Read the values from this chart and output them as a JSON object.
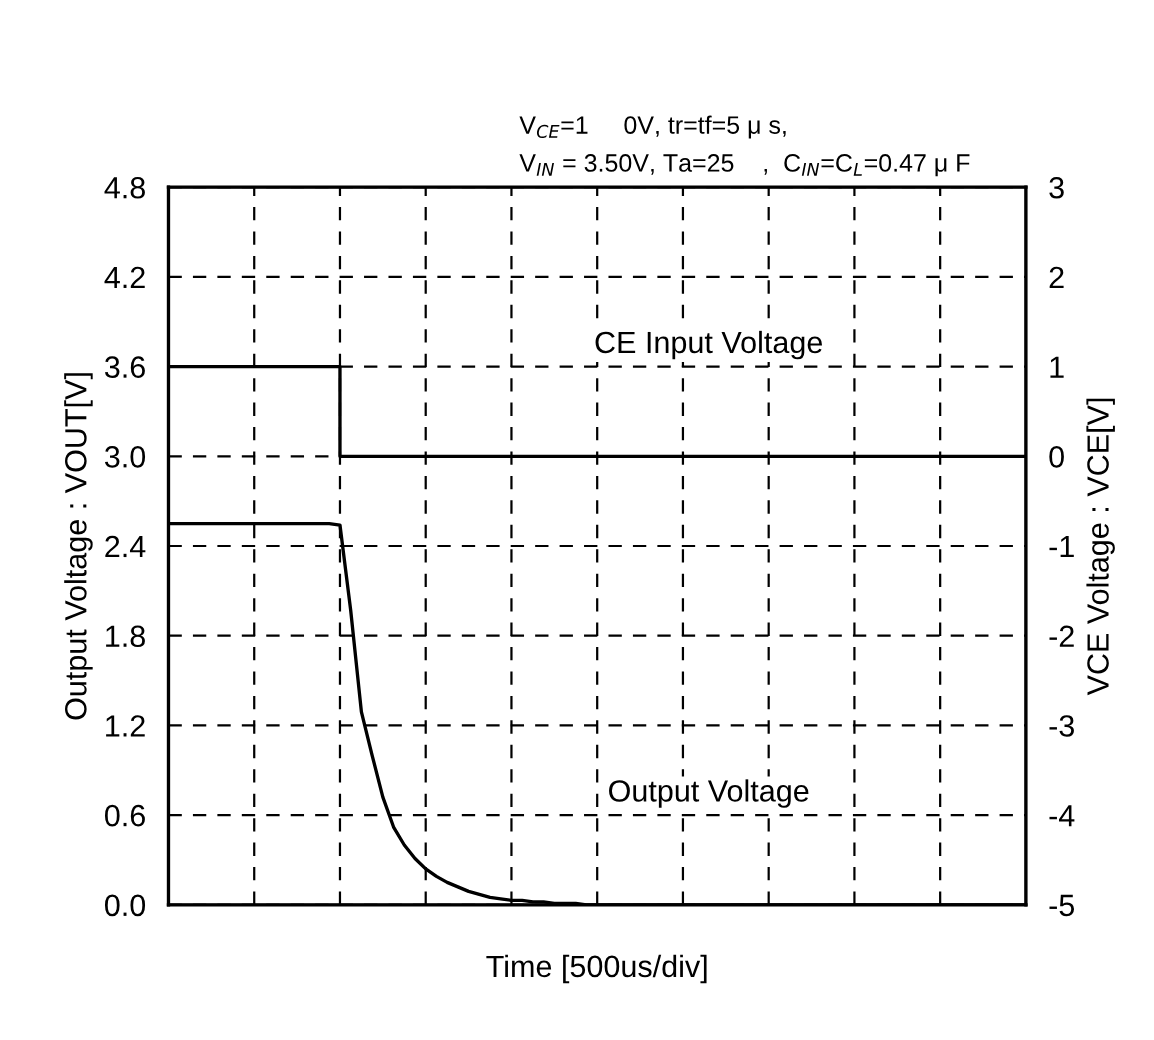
{
  "chart_data": {
    "type": "line",
    "subtitle": "V$_{CE}$=1     0V, tr=tf=5 μ s,\nV$_{IN}$ = 3.50V, Ta=25    ,  C$_{IN}$=C$_{L}$=0.47 μ F",
    "xlabel": "Time [500us/div]",
    "ylabel": "Output Voltage : VOUT[V]",
    "y2label": "VCE Voltage : VCE[V]",
    "categories": [
      null,
      null,
      null,
      null,
      null,
      null,
      null,
      null,
      null,
      null,
      null,
      null,
      null,
      null,
      null,
      null,
      null,
      null,
      null,
      null,
      null,
      null,
      null,
      null,
      null,
      null,
      null,
      null,
      null,
      null,
      null,
      null,
      null,
      null,
      null,
      null,
      null,
      null,
      null,
      null,
      null,
      null,
      null,
      null,
      null,
      null,
      null,
      null,
      null,
      null,
      null,
      null,
      null,
      null,
      null,
      null,
      null,
      null,
      null,
      null,
      null,
      null,
      null,
      null,
      null,
      null,
      null,
      null,
      null,
      null,
      null,
      null,
      null,
      null,
      null,
      null,
      null,
      null,
      null,
      null,
      null
    ],
    "ylim": [
      0,
      4.8
    ],
    "yticks": [
      {
        "value": 0,
        "label": "0.0"
      },
      0.6,
      1.2,
      1.8,
      2.4,
      {
        "value": 3,
        "label": "3.0"
      },
      3.6,
      4.2,
      4.8
    ],
    "y2lim": [
      -5,
      3
    ],
    "y2ticks": [
      -5,
      -4,
      -3,
      -2,
      -1,
      0,
      1,
      2,
      3
    ],
    "grid": true,
    "line_style": "solid",
    "marker": "none",
    "series": [
      {
        "type": "step",
        "color": "#000000",
        "axis": "y2",
        "values": [
          1,
          1,
          1,
          1,
          1,
          1,
          1,
          1,
          1,
          1,
          1,
          1,
          1,
          1,
          1,
          1,
          0,
          0,
          0,
          0,
          0,
          0,
          0,
          0,
          0,
          0,
          0,
          0,
          0,
          0,
          0,
          0,
          0,
          0,
          0,
          0,
          0,
          0,
          0,
          0,
          0,
          0,
          0,
          0,
          0,
          0,
          0,
          0,
          0,
          0,
          0,
          0,
          0,
          0,
          0,
          0,
          0,
          0,
          0,
          0,
          0,
          0,
          0,
          0,
          0,
          0,
          0,
          0,
          0,
          0,
          0,
          0,
          0,
          0,
          0,
          0,
          0,
          0,
          0,
          0,
          0
        ]
      },
      {
        "color": "#000000",
        "axis": "y",
        "values": [
          2.55,
          2.55,
          2.55,
          2.55,
          2.55,
          2.55,
          2.55,
          2.55,
          2.55,
          2.55,
          2.55,
          2.55,
          2.55,
          2.55,
          2.55,
          2.55,
          2.54,
          1.97,
          1.29,
          1.0,
          0.72,
          0.52,
          0.4,
          0.31,
          0.24,
          0.19,
          0.15,
          0.12,
          0.09,
          0.07,
          0.05,
          0.04,
          0.03,
          0.03,
          0.02,
          0.02,
          0.01,
          0.01,
          0.01,
          0,
          0,
          0,
          0,
          0,
          0,
          0,
          0,
          0,
          0,
          0,
          0,
          0,
          0,
          0,
          0,
          0,
          0,
          0,
          0,
          0,
          0,
          0,
          0,
          0,
          0,
          0,
          0,
          0,
          0,
          0,
          0,
          0,
          0,
          0,
          0,
          0,
          0,
          0,
          0,
          0,
          0
        ]
      }
    ],
    "annotations": [
      "CE Input Voltage",
      "Output Voltage"
    ]
  }
}
